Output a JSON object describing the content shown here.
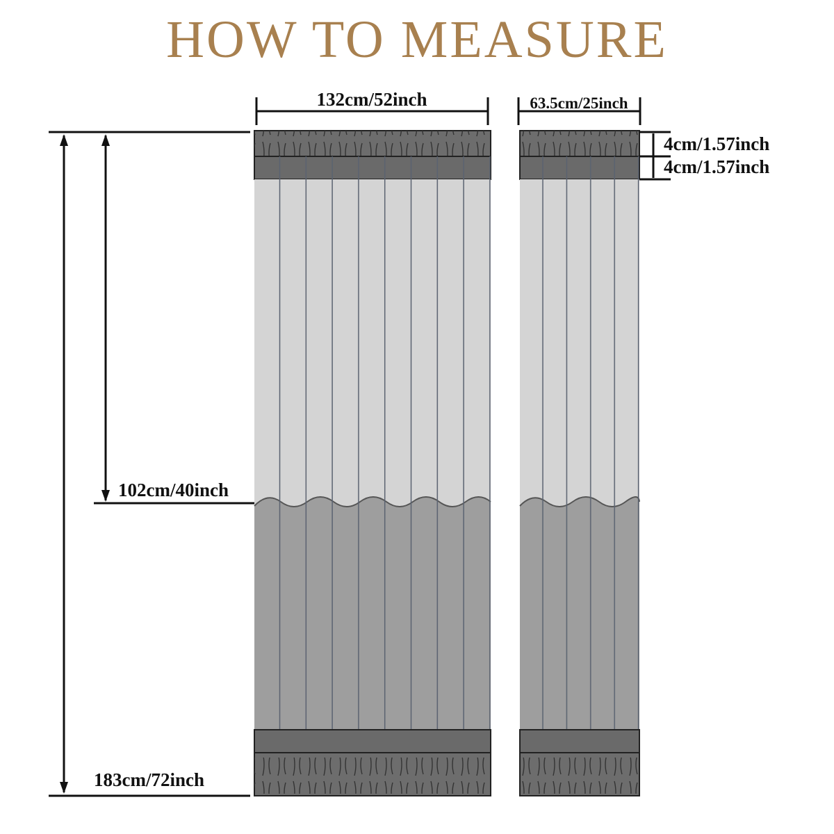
{
  "header": {
    "title": "HOW TO MEASURE"
  },
  "dimensions": {
    "wide_width": "132cm/52inch",
    "narrow_width": "63.5cm/25inch",
    "rod_pocket": "4cm/1.57inch",
    "header_band": "4cm/1.57inch",
    "upper_height": "102cm/40inch",
    "total_height": "183cm/72inch"
  }
}
